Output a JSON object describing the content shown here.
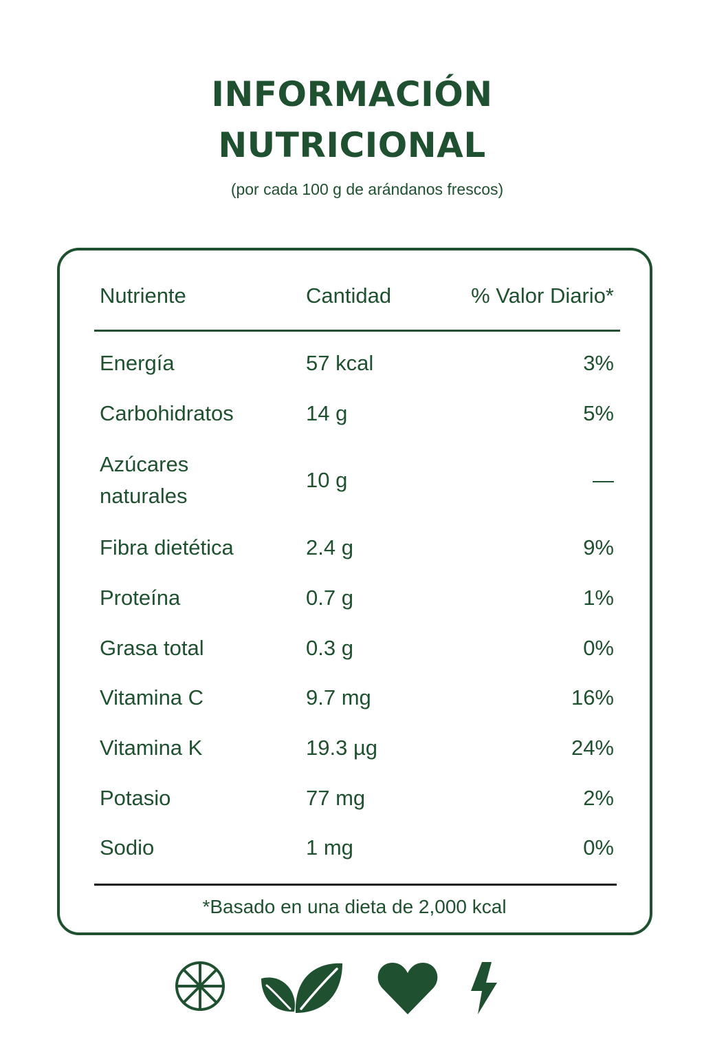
{
  "title": {
    "line1": "INFORMACIÓN",
    "line2": "NUTRICIONAL"
  },
  "subtitle": "(por cada 100 g de arándanos frescos)",
  "table": {
    "headers": {
      "nutrient": "Nutriente",
      "amount": "Cantidad",
      "daily_value": "% Valor Diario*"
    },
    "rows": [
      {
        "nutrient": "Energía",
        "amount": "57 kcal",
        "daily_value": "3%"
      },
      {
        "nutrient": "Carbohidratos",
        "amount": "14 g",
        "daily_value": "5%"
      },
      {
        "nutrient_line1": "Azúcares",
        "nutrient_line2": "naturales",
        "amount": "10 g",
        "daily_value": "—"
      },
      {
        "nutrient": "Fibra dietética",
        "amount": "2.4 g",
        "daily_value": "9%"
      },
      {
        "nutrient": "Proteína",
        "amount": "0.7 g",
        "daily_value": "1%"
      },
      {
        "nutrient": "Grasa total",
        "amount": "0.3 g",
        "daily_value": "0%"
      },
      {
        "nutrient": "Vitamina C",
        "amount": "9.7 mg",
        "daily_value": "16%"
      },
      {
        "nutrient": "Vitamina K",
        "amount": "19.3 µg",
        "daily_value": "24%"
      },
      {
        "nutrient": "Potasio",
        "amount": "77 mg",
        "daily_value": "2%"
      },
      {
        "nutrient": "Sodio",
        "amount": "1 mg",
        "daily_value": "0%"
      }
    ],
    "footnote": "*Basado en una dieta de 2,000 kcal"
  },
  "icons": [
    "citrus-icon",
    "leaves-icon",
    "heart-icon",
    "lightning-icon"
  ],
  "colors": {
    "primary": "#1f5130",
    "background": "#ffffff"
  }
}
